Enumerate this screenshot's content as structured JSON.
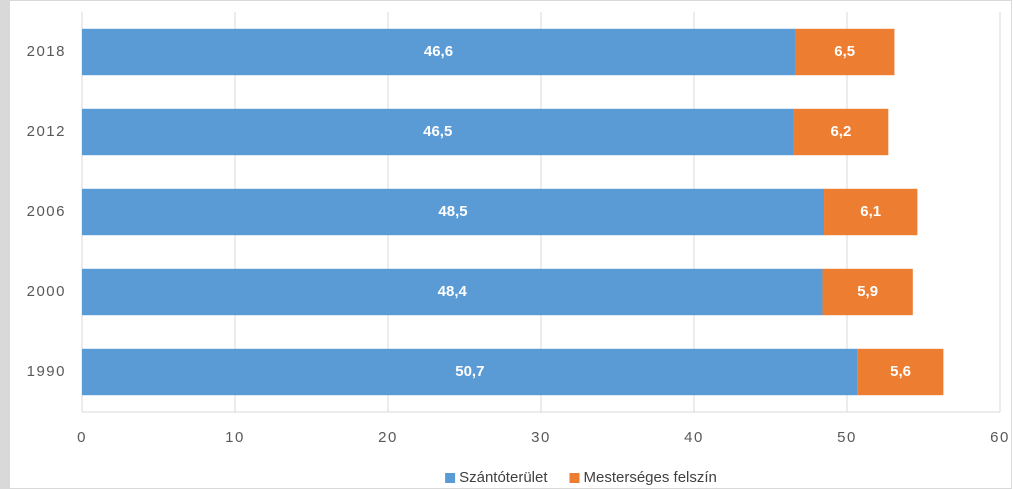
{
  "chart_data": {
    "type": "stacked_barh",
    "categories": [
      "2018",
      "2012",
      "2006",
      "2000",
      "1990"
    ],
    "series": [
      {
        "name": "Szántóterület",
        "color": "#5b9bd5",
        "values": [
          46.6,
          46.5,
          48.5,
          48.4,
          50.7
        ],
        "value_labels": [
          "46,6",
          "46,5",
          "48,5",
          "48,4",
          "50,7"
        ]
      },
      {
        "name": "Mesterséges felszín",
        "color": "#ed7d31",
        "values": [
          6.5,
          6.2,
          6.1,
          5.9,
          5.6
        ],
        "value_labels": [
          "6,5",
          "6,2",
          "6,1",
          "5,9",
          "5,6"
        ]
      }
    ],
    "xlim": [
      0,
      60
    ],
    "xticks": [
      0,
      10,
      20,
      30,
      40,
      50,
      60
    ],
    "grid": true,
    "legend": "bottom"
  }
}
